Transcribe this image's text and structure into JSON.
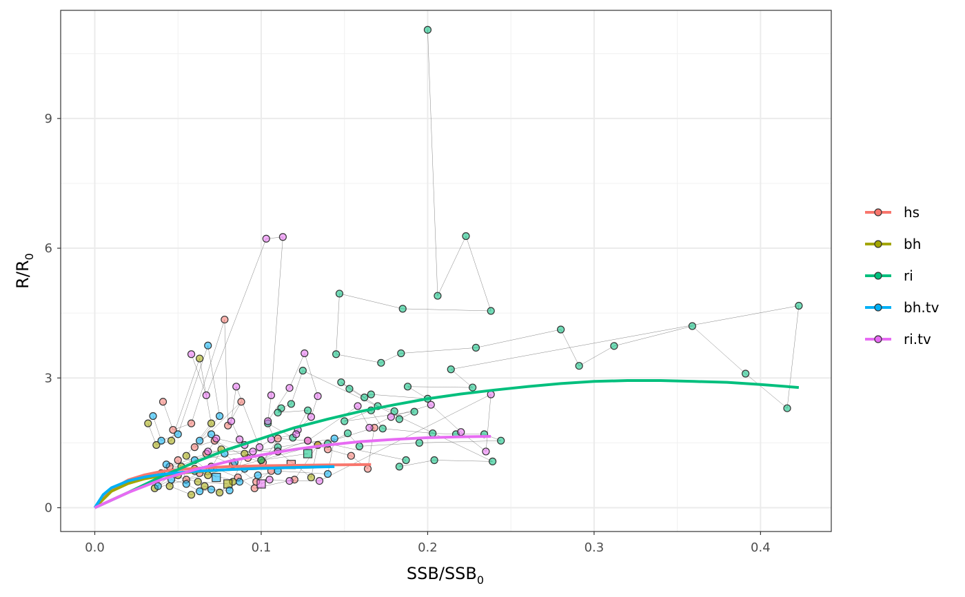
{
  "chart_data": {
    "type": "scatter",
    "xlabel": {
      "main": "SSB/SSB",
      "sub": "0"
    },
    "ylabel": {
      "main": "R/R",
      "sub": "0"
    },
    "xlim": [
      -0.0205,
      0.4425
    ],
    "ylim": [
      -0.55,
      11.5
    ],
    "xticks": [
      0.0,
      0.1,
      0.2,
      0.3,
      0.4
    ],
    "xtick_labels": [
      "0.0",
      "0.1",
      "0.2",
      "0.3",
      "0.4"
    ],
    "yticks": [
      0,
      3,
      6,
      9
    ],
    "ytick_labels": [
      "0",
      "3",
      "6",
      "9"
    ],
    "grid": true,
    "legend_position": "right",
    "series": [
      {
        "name": "hs",
        "color": "#F8766D",
        "curve": [
          [
            0.0,
            0.0
          ],
          [
            0.01,
            0.42
          ],
          [
            0.02,
            0.64
          ],
          [
            0.03,
            0.76
          ],
          [
            0.04,
            0.84
          ],
          [
            0.05,
            0.88
          ],
          [
            0.06,
            0.91
          ],
          [
            0.08,
            0.95
          ],
          [
            0.1,
            0.97
          ],
          [
            0.12,
            0.98
          ],
          [
            0.14,
            0.99
          ],
          [
            0.166,
            1.0
          ]
        ],
        "points": [
          [
            0.041,
            2.45
          ],
          [
            0.047,
            1.8
          ],
          [
            0.058,
            1.95
          ],
          [
            0.078,
            4.35
          ],
          [
            0.08,
            1.9
          ],
          [
            0.088,
            2.45
          ],
          [
            0.06,
            1.4
          ],
          [
            0.072,
            1.55
          ],
          [
            0.092,
            1.15
          ],
          [
            0.101,
            1.05
          ],
          [
            0.11,
            1.6
          ],
          [
            0.128,
            1.55
          ],
          [
            0.14,
            1.35
          ],
          [
            0.154,
            1.2
          ],
          [
            0.164,
            0.9
          ],
          [
            0.168,
            1.85
          ],
          [
            0.134,
            1.45
          ],
          [
            0.12,
            0.65
          ],
          [
            0.096,
            0.45
          ],
          [
            0.086,
            0.7
          ],
          [
            0.07,
            0.95
          ],
          [
            0.063,
            0.8
          ],
          [
            0.055,
            0.65
          ],
          [
            0.05,
            1.1
          ],
          [
            0.045,
            0.95
          ],
          [
            0.067,
            1.25
          ],
          [
            0.083,
            1.0
          ],
          [
            0.097,
            0.6
          ],
          [
            0.106,
            0.85
          ],
          [
            0.118,
            1.0
          ]
        ]
      },
      {
        "name": "bh",
        "color": "#A3A500",
        "curve": [
          [
            0.0,
            0.0
          ],
          [
            0.01,
            0.38
          ],
          [
            0.02,
            0.56
          ],
          [
            0.03,
            0.67
          ],
          [
            0.04,
            0.74
          ],
          [
            0.05,
            0.79
          ],
          [
            0.06,
            0.83
          ],
          [
            0.08,
            0.88
          ],
          [
            0.1,
            0.91
          ],
          [
            0.12,
            0.93
          ],
          [
            0.133,
            0.94
          ]
        ],
        "points": [
          [
            0.032,
            1.95
          ],
          [
            0.037,
            1.45
          ],
          [
            0.046,
            1.55
          ],
          [
            0.063,
            3.45
          ],
          [
            0.07,
            1.95
          ],
          [
            0.055,
            1.2
          ],
          [
            0.06,
            0.9
          ],
          [
            0.05,
            0.75
          ],
          [
            0.045,
            0.5
          ],
          [
            0.058,
            0.3
          ],
          [
            0.066,
            0.5
          ],
          [
            0.075,
            0.35
          ],
          [
            0.083,
            0.6
          ],
          [
            0.09,
            1.25
          ],
          [
            0.1,
            1.1
          ],
          [
            0.11,
            1.3
          ],
          [
            0.13,
            0.7
          ],
          [
            0.134,
            1.45
          ],
          [
            0.036,
            0.45
          ],
          [
            0.052,
            0.95
          ],
          [
            0.068,
            0.75
          ],
          [
            0.076,
            1.35
          ],
          [
            0.04,
            0.8
          ],
          [
            0.062,
            0.6
          ],
          [
            0.08,
            0.55
          ]
        ]
      },
      {
        "name": "ri",
        "color": "#00BF7D",
        "curve": [
          [
            0.0,
            0.0
          ],
          [
            0.02,
            0.35
          ],
          [
            0.04,
            0.72
          ],
          [
            0.06,
            1.05
          ],
          [
            0.08,
            1.35
          ],
          [
            0.1,
            1.6
          ],
          [
            0.12,
            1.85
          ],
          [
            0.14,
            2.05
          ],
          [
            0.16,
            2.23
          ],
          [
            0.18,
            2.38
          ],
          [
            0.2,
            2.52
          ],
          [
            0.22,
            2.63
          ],
          [
            0.24,
            2.72
          ],
          [
            0.26,
            2.8
          ],
          [
            0.28,
            2.87
          ],
          [
            0.3,
            2.92
          ],
          [
            0.32,
            2.94
          ],
          [
            0.34,
            2.94
          ],
          [
            0.36,
            2.92
          ],
          [
            0.38,
            2.9
          ],
          [
            0.4,
            2.85
          ],
          [
            0.423,
            2.78
          ]
        ],
        "points": [
          [
            0.2,
            11.05
          ],
          [
            0.206,
            4.9
          ],
          [
            0.223,
            6.28
          ],
          [
            0.238,
            4.55
          ],
          [
            0.185,
            4.6
          ],
          [
            0.147,
            4.95
          ],
          [
            0.145,
            3.55
          ],
          [
            0.172,
            3.35
          ],
          [
            0.184,
            3.57
          ],
          [
            0.229,
            3.7
          ],
          [
            0.28,
            4.12
          ],
          [
            0.291,
            3.28
          ],
          [
            0.312,
            3.74
          ],
          [
            0.359,
            4.2
          ],
          [
            0.391,
            3.1
          ],
          [
            0.416,
            2.3
          ],
          [
            0.423,
            4.67
          ],
          [
            0.214,
            3.2
          ],
          [
            0.227,
            2.78
          ],
          [
            0.188,
            2.8
          ],
          [
            0.2,
            2.52
          ],
          [
            0.166,
            2.62
          ],
          [
            0.162,
            2.55
          ],
          [
            0.148,
            2.9
          ],
          [
            0.153,
            2.75
          ],
          [
            0.17,
            2.35
          ],
          [
            0.18,
            2.23
          ],
          [
            0.183,
            2.05
          ],
          [
            0.192,
            2.22
          ],
          [
            0.15,
            2.0
          ],
          [
            0.166,
            2.25
          ],
          [
            0.173,
            1.83
          ],
          [
            0.203,
            1.72
          ],
          [
            0.217,
            1.7
          ],
          [
            0.234,
            1.7
          ],
          [
            0.244,
            1.55
          ],
          [
            0.195,
            1.5
          ],
          [
            0.159,
            1.42
          ],
          [
            0.152,
            1.72
          ],
          [
            0.14,
            1.48
          ],
          [
            0.187,
            1.1
          ],
          [
            0.183,
            0.95
          ],
          [
            0.204,
            1.1
          ],
          [
            0.239,
            1.07
          ],
          [
            0.125,
            3.17
          ],
          [
            0.118,
            2.4
          ],
          [
            0.112,
            2.3
          ],
          [
            0.11,
            2.2
          ],
          [
            0.128,
            2.25
          ],
          [
            0.119,
            1.62
          ],
          [
            0.104,
            1.95
          ],
          [
            0.11,
            1.4
          ],
          [
            0.1,
            1.1
          ],
          [
            0.128,
            1.25
          ]
        ]
      },
      {
        "name": "bh.tv",
        "color": "#00B0F6",
        "curve": [
          [
            0.0,
            0.0
          ],
          [
            0.005,
            0.3
          ],
          [
            0.01,
            0.46
          ],
          [
            0.02,
            0.62
          ],
          [
            0.03,
            0.71
          ],
          [
            0.04,
            0.77
          ],
          [
            0.05,
            0.81
          ],
          [
            0.06,
            0.84
          ],
          [
            0.08,
            0.88
          ],
          [
            0.1,
            0.91
          ],
          [
            0.12,
            0.93
          ],
          [
            0.144,
            0.95
          ]
        ],
        "points": [
          [
            0.035,
            2.12
          ],
          [
            0.04,
            1.55
          ],
          [
            0.05,
            1.7
          ],
          [
            0.068,
            3.75
          ],
          [
            0.075,
            2.12
          ],
          [
            0.063,
            1.55
          ],
          [
            0.07,
            1.7
          ],
          [
            0.078,
            1.25
          ],
          [
            0.084,
            1.05
          ],
          [
            0.09,
            0.9
          ],
          [
            0.081,
            0.4
          ],
          [
            0.07,
            0.42
          ],
          [
            0.063,
            0.38
          ],
          [
            0.055,
            0.55
          ],
          [
            0.046,
            0.65
          ],
          [
            0.038,
            0.5
          ],
          [
            0.043,
            1.0
          ],
          [
            0.06,
            0.85
          ],
          [
            0.087,
            0.6
          ],
          [
            0.098,
            0.75
          ],
          [
            0.11,
            0.85
          ],
          [
            0.14,
            0.78
          ],
          [
            0.144,
            1.6
          ],
          [
            0.06,
            1.1
          ],
          [
            0.073,
            0.7
          ]
        ]
      },
      {
        "name": "ri.tv",
        "color": "#E76BF3",
        "curve": [
          [
            0.0,
            0.0
          ],
          [
            0.02,
            0.35
          ],
          [
            0.04,
            0.65
          ],
          [
            0.06,
            0.88
          ],
          [
            0.08,
            1.07
          ],
          [
            0.1,
            1.22
          ],
          [
            0.12,
            1.35
          ],
          [
            0.14,
            1.45
          ],
          [
            0.16,
            1.53
          ],
          [
            0.18,
            1.58
          ],
          [
            0.2,
            1.62
          ],
          [
            0.22,
            1.64
          ],
          [
            0.238,
            1.65
          ]
        ],
        "points": [
          [
            0.058,
            3.55
          ],
          [
            0.067,
            2.6
          ],
          [
            0.103,
            6.22
          ],
          [
            0.113,
            6.26
          ],
          [
            0.106,
            2.6
          ],
          [
            0.104,
            2.0
          ],
          [
            0.117,
            2.77
          ],
          [
            0.126,
            3.57
          ],
          [
            0.134,
            2.58
          ],
          [
            0.13,
            2.1
          ],
          [
            0.122,
            1.8
          ],
          [
            0.121,
            1.7
          ],
          [
            0.106,
            1.58
          ],
          [
            0.099,
            1.4
          ],
          [
            0.085,
            2.8
          ],
          [
            0.082,
            2.0
          ],
          [
            0.087,
            1.58
          ],
          [
            0.09,
            1.45
          ],
          [
            0.073,
            1.6
          ],
          [
            0.068,
            1.3
          ],
          [
            0.095,
            1.3
          ],
          [
            0.11,
            1.3
          ],
          [
            0.128,
            1.55
          ],
          [
            0.158,
            2.35
          ],
          [
            0.165,
            1.85
          ],
          [
            0.178,
            2.1
          ],
          [
            0.202,
            2.38
          ],
          [
            0.22,
            1.75
          ],
          [
            0.235,
            1.3
          ],
          [
            0.238,
            2.62
          ],
          [
            0.135,
            0.62
          ],
          [
            0.117,
            0.62
          ],
          [
            0.105,
            0.65
          ],
          [
            0.1,
            0.55
          ]
        ]
      }
    ]
  }
}
